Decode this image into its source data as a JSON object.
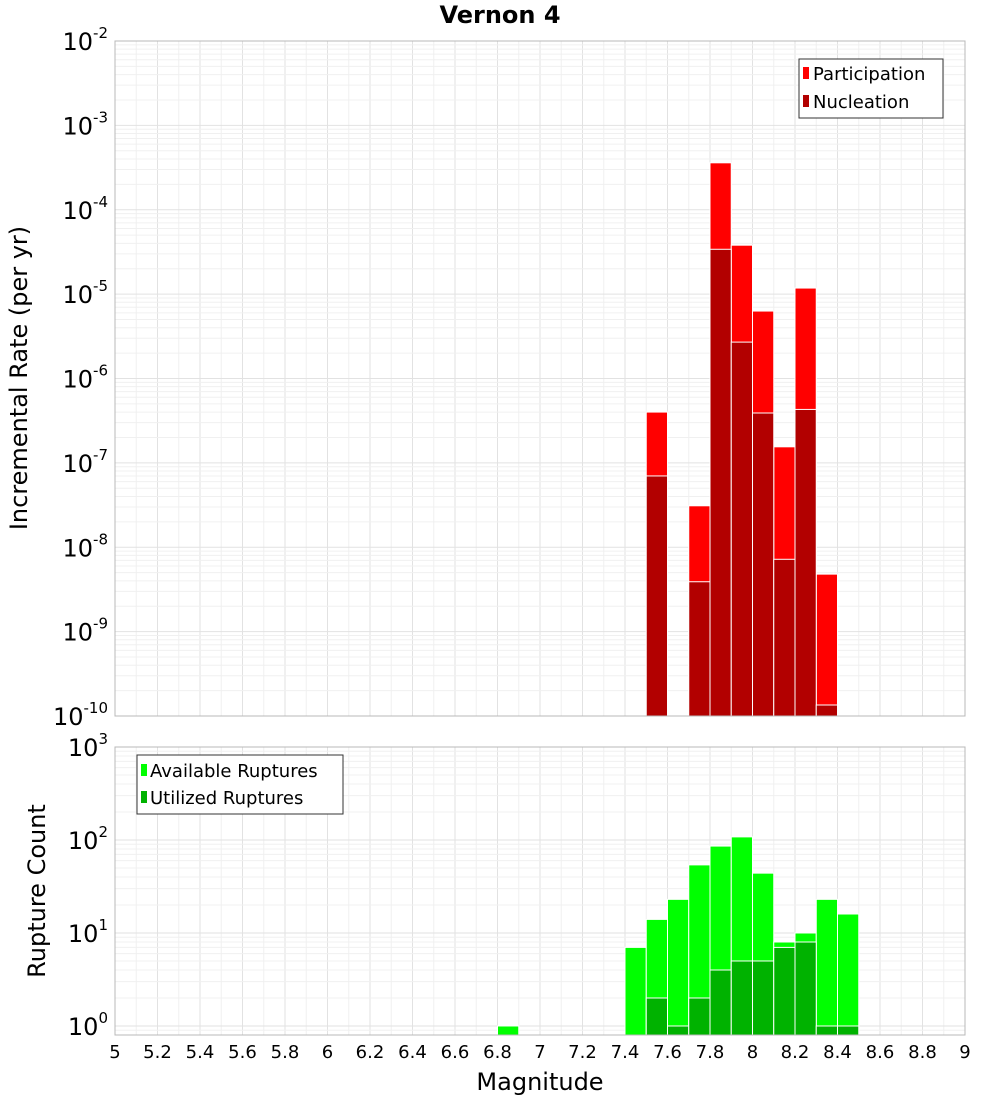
{
  "chart_data": [
    {
      "type": "bar",
      "title": "Vernon 4",
      "ylabel": "Incremental Rate (per yr)",
      "xlabel": "",
      "y_scale": "log",
      "ylim": [
        1e-10,
        0.01
      ],
      "xlim": [
        5,
        9
      ],
      "bin_width": 0.1,
      "y_tick_labels": [
        {
          "base": "10",
          "exp": "-10",
          "value": 1e-10
        },
        {
          "base": "10",
          "exp": "-9",
          "value": 1e-09
        },
        {
          "base": "10",
          "exp": "-8",
          "value": 1e-08
        },
        {
          "base": "10",
          "exp": "-7",
          "value": 1e-07
        },
        {
          "base": "10",
          "exp": "-6",
          "value": 1e-06
        },
        {
          "base": "10",
          "exp": "-5",
          "value": 1e-05
        },
        {
          "base": "10",
          "exp": "-4",
          "value": 0.0001
        },
        {
          "base": "10",
          "exp": "-3",
          "value": 0.001
        },
        {
          "base": "10",
          "exp": "-2",
          "value": 0.01
        }
      ],
      "legend_position": "top-right",
      "grid": true,
      "x": [
        7.55,
        7.75,
        7.85,
        7.95,
        8.05,
        8.15,
        8.25,
        8.35
      ],
      "series": [
        {
          "name": "Participation",
          "color": "#ff0000",
          "values": [
            4e-07,
            3.1e-08,
            0.00036,
            3.8e-05,
            6.3e-06,
            1.55e-07,
            1.18e-05,
            4.8e-09
          ]
        },
        {
          "name": "Nucleation",
          "color": "#b20000",
          "values": [
            7e-08,
            3.9e-09,
            3.4e-05,
            2.7e-06,
            3.9e-07,
            7.2e-09,
            4.3e-07,
            1.35e-10
          ]
        }
      ]
    },
    {
      "type": "bar",
      "title": "",
      "ylabel": "Rupture Count",
      "xlabel": "Magnitude",
      "y_scale": "log",
      "ylim": [
        0.8,
        1000
      ],
      "xlim": [
        5,
        9
      ],
      "bin_width": 0.1,
      "y_tick_labels": [
        {
          "base": "10",
          "exp": "0",
          "value": 1
        },
        {
          "base": "10",
          "exp": "1",
          "value": 10
        },
        {
          "base": "10",
          "exp": "2",
          "value": 100
        },
        {
          "base": "10",
          "exp": "3",
          "value": 1000
        }
      ],
      "x_tick_labels": [
        "5",
        "5.2",
        "5.4",
        "5.6",
        "5.8",
        "6",
        "6.2",
        "6.4",
        "6.6",
        "6.8",
        "7",
        "7.2",
        "7.4",
        "7.6",
        "7.8",
        "8",
        "8.2",
        "8.4",
        "8.6",
        "8.8",
        "9"
      ],
      "legend_position": "top-left",
      "grid": true,
      "x": [
        6.85,
        7.45,
        7.55,
        7.65,
        7.75,
        7.85,
        7.95,
        8.05,
        8.15,
        8.25,
        8.35,
        8.45
      ],
      "series": [
        {
          "name": "Available Ruptures",
          "color": "#00ff00",
          "values": [
            1,
            7,
            14,
            23,
            54,
            86,
            108,
            44,
            8,
            10,
            23,
            16
          ]
        },
        {
          "name": "Utilized Ruptures",
          "color": "#00b200",
          "values": [
            0,
            0,
            2,
            1,
            2,
            4,
            5,
            5,
            7,
            8,
            1,
            1
          ]
        }
      ]
    }
  ]
}
